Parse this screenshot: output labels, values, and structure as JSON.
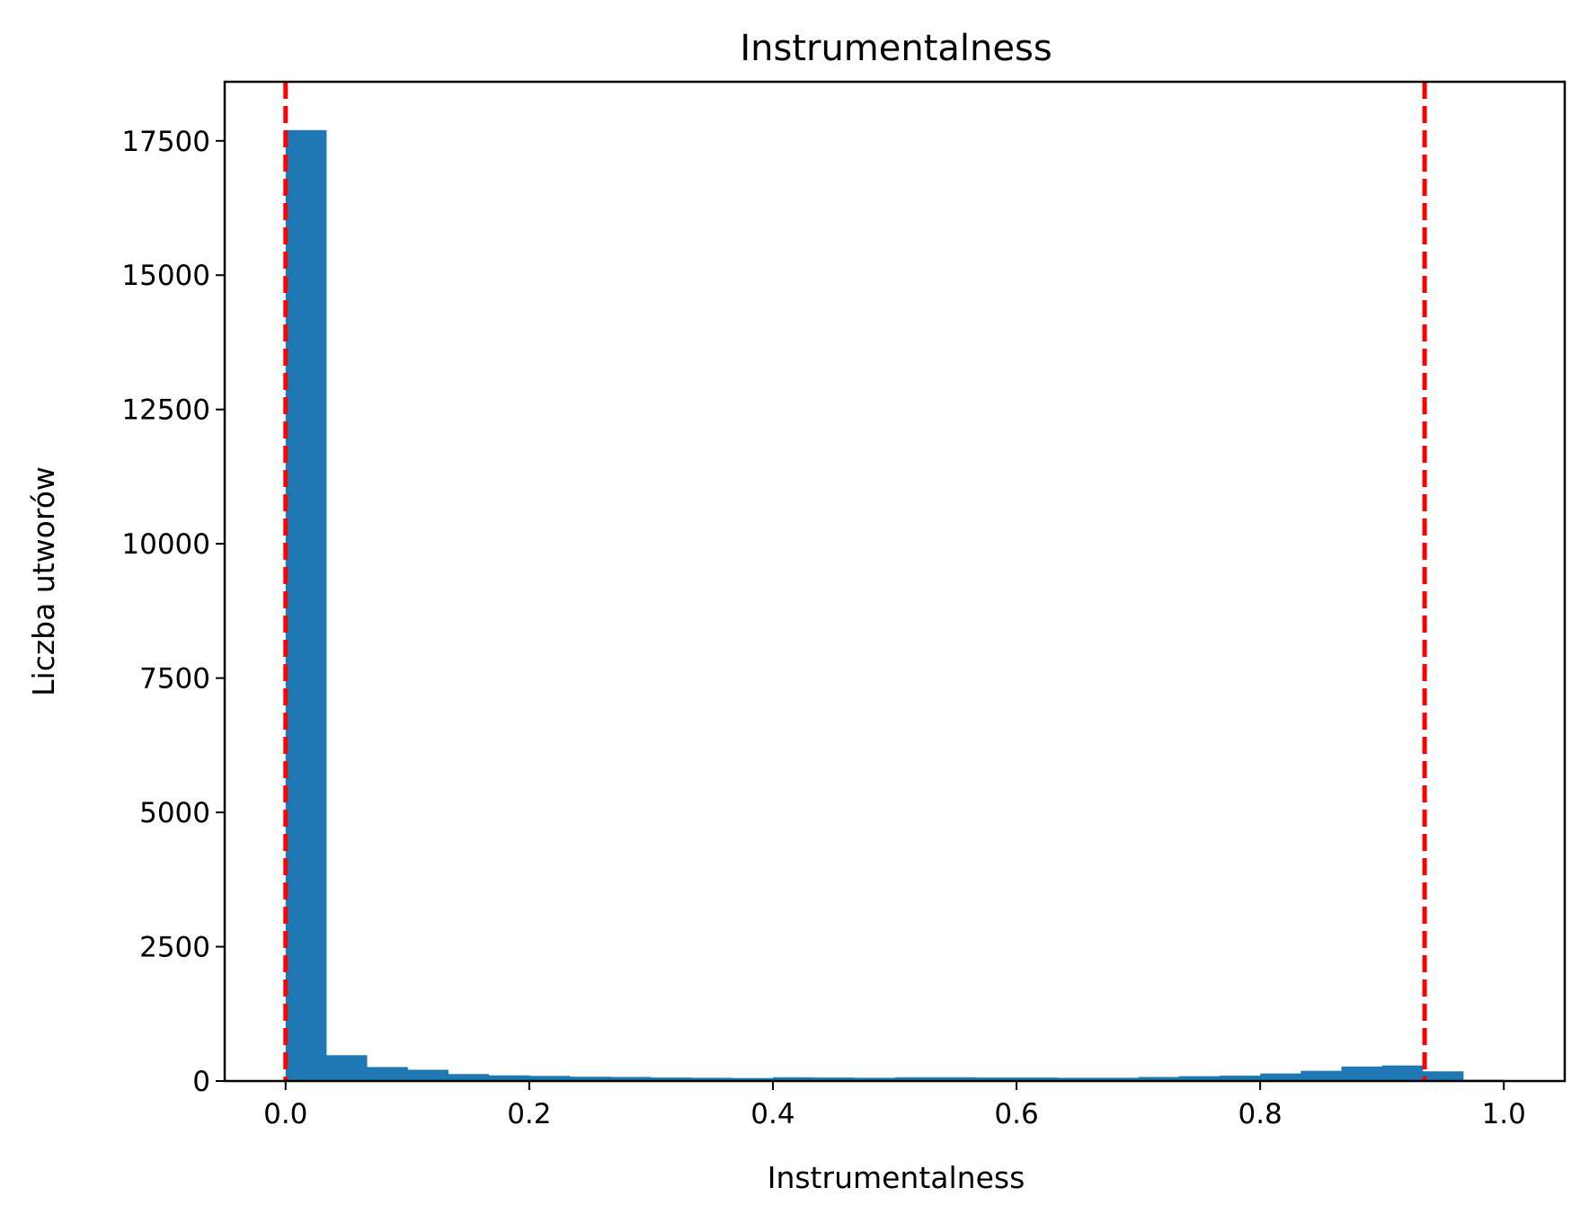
{
  "chart_data": {
    "type": "histogram",
    "title": "Instrumentalness",
    "xlabel": "Instrumentalness",
    "ylabel": "Liczba utworów",
    "xlim": [
      -0.05,
      1.05
    ],
    "ylim": [
      0,
      18600
    ],
    "bar_color": "#1f77b4",
    "bin_width": 0.0333,
    "bins": [
      {
        "x0": 0.0,
        "count": 17700
      },
      {
        "x0": 0.0333,
        "count": 480
      },
      {
        "x0": 0.0667,
        "count": 260
      },
      {
        "x0": 0.1,
        "count": 210
      },
      {
        "x0": 0.1333,
        "count": 130
      },
      {
        "x0": 0.1667,
        "count": 105
      },
      {
        "x0": 0.2,
        "count": 95
      },
      {
        "x0": 0.2333,
        "count": 80
      },
      {
        "x0": 0.2667,
        "count": 75
      },
      {
        "x0": 0.3,
        "count": 65
      },
      {
        "x0": 0.3333,
        "count": 60
      },
      {
        "x0": 0.3667,
        "count": 55
      },
      {
        "x0": 0.4,
        "count": 70
      },
      {
        "x0": 0.4333,
        "count": 65
      },
      {
        "x0": 0.4667,
        "count": 60
      },
      {
        "x0": 0.5,
        "count": 70
      },
      {
        "x0": 0.5333,
        "count": 70
      },
      {
        "x0": 0.5667,
        "count": 65
      },
      {
        "x0": 0.6,
        "count": 65
      },
      {
        "x0": 0.6333,
        "count": 60
      },
      {
        "x0": 0.6667,
        "count": 60
      },
      {
        "x0": 0.7,
        "count": 75
      },
      {
        "x0": 0.7333,
        "count": 90
      },
      {
        "x0": 0.7667,
        "count": 100
      },
      {
        "x0": 0.8,
        "count": 140
      },
      {
        "x0": 0.8333,
        "count": 190
      },
      {
        "x0": 0.8667,
        "count": 270
      },
      {
        "x0": 0.9,
        "count": 290
      },
      {
        "x0": 0.9333,
        "count": 180
      },
      {
        "x0": 0.9667,
        "count": 25
      }
    ],
    "vlines": [
      {
        "x": 0.0,
        "color": "#ff0000",
        "style": "dashed"
      },
      {
        "x": 0.935,
        "color": "#ff0000",
        "style": "dashed"
      }
    ],
    "xticks": [
      {
        "value": 0.0,
        "label": "0.0"
      },
      {
        "value": 0.2,
        "label": "0.2"
      },
      {
        "value": 0.4,
        "label": "0.4"
      },
      {
        "value": 0.6,
        "label": "0.6"
      },
      {
        "value": 0.8,
        "label": "0.8"
      },
      {
        "value": 1.0,
        "label": "1.0"
      }
    ],
    "yticks": [
      {
        "value": 0,
        "label": "0"
      },
      {
        "value": 2500,
        "label": "2500"
      },
      {
        "value": 5000,
        "label": "5000"
      },
      {
        "value": 7500,
        "label": "7500"
      },
      {
        "value": 10000,
        "label": "10000"
      },
      {
        "value": 12500,
        "label": "12500"
      },
      {
        "value": 15000,
        "label": "15000"
      },
      {
        "value": 17500,
        "label": "17500"
      }
    ]
  }
}
